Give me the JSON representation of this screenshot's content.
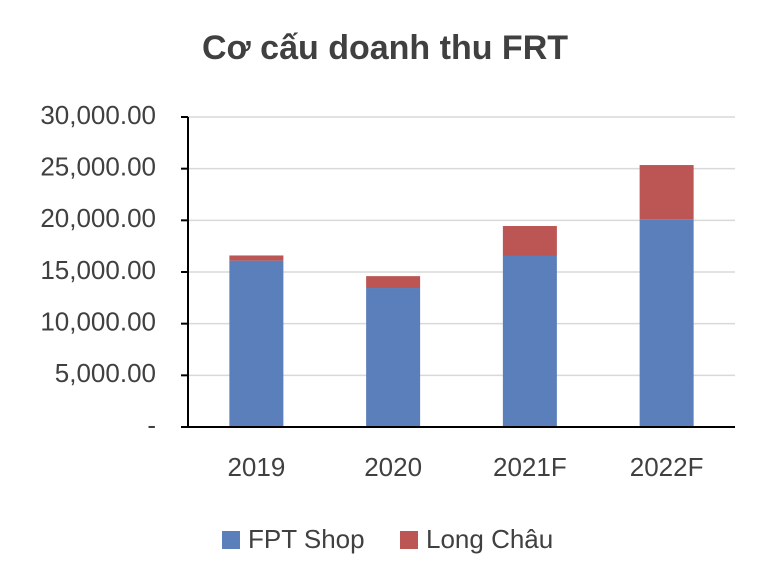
{
  "chart_data": {
    "type": "stacked_bar",
    "title": "Cơ cấu doanh thu FRT",
    "categories": [
      "2019",
      "2020",
      "2021F",
      "2022F"
    ],
    "series": [
      {
        "name": "FPT Shop",
        "color": "#5b7fba",
        "values": [
          16100,
          13450,
          16550,
          20100
        ]
      },
      {
        "name": "Long Châu",
        "color": "#bb5654",
        "values": [
          500,
          1150,
          2900,
          5250
        ]
      }
    ],
    "ylim": [
      0,
      30000
    ],
    "yticks": [
      {
        "value": 0,
        "label": "-"
      },
      {
        "value": 5000,
        "label": "5,000.00"
      },
      {
        "value": 10000,
        "label": "10,000.00"
      },
      {
        "value": 15000,
        "label": "15,000.00"
      },
      {
        "value": 20000,
        "label": "20,000.00"
      },
      {
        "value": 25000,
        "label": "25,000.00"
      },
      {
        "value": 30000,
        "label": "30,000.00"
      }
    ],
    "grid": true,
    "legend": "bottom"
  }
}
